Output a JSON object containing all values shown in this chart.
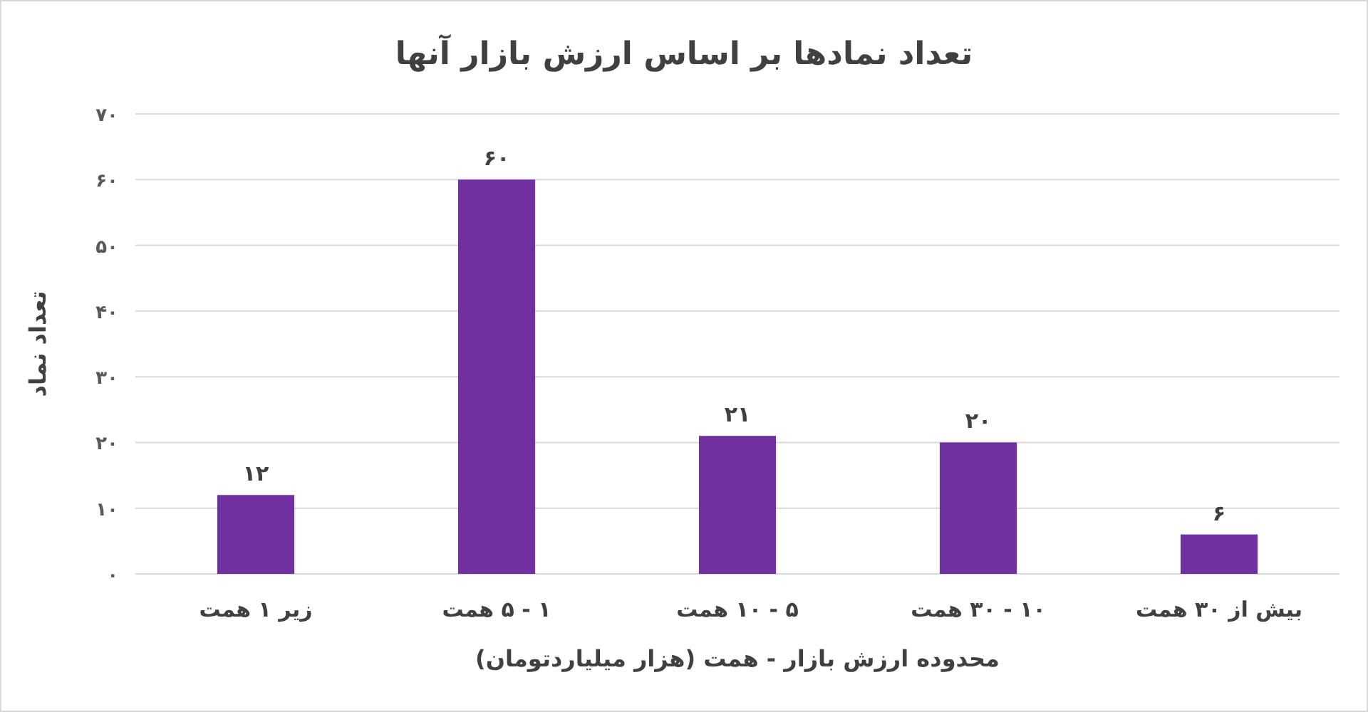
{
  "chart_data": {
    "type": "bar",
    "title": "تعداد نمادها بر اساس ارزش بازار آنها",
    "xlabel": "محدوده ارزش بازار - همت (هزار میلیاردتومان)",
    "ylabel": "تعداد نماد",
    "categories": [
      "زیر ۱ همت",
      "۱ - ۵ همت",
      "۵ - ۱۰ همت",
      "۱۰ - ۳۰ همت",
      "بیش از ۳۰ همت"
    ],
    "values": [
      12,
      60,
      21,
      20,
      6
    ],
    "value_labels": [
      "۱۲",
      "۶۰",
      "۲۱",
      "۲۰",
      "۶"
    ],
    "color": "#7030a0",
    "ylim": [
      0,
      70
    ],
    "yticks": [
      {
        "value": 0,
        "label": "۰"
      },
      {
        "value": 10,
        "label": "۱۰"
      },
      {
        "value": 20,
        "label": "۲۰"
      },
      {
        "value": 30,
        "label": "۳۰"
      },
      {
        "value": 40,
        "label": "۴۰"
      },
      {
        "value": 50,
        "label": "۵۰"
      },
      {
        "value": 60,
        "label": "۶۰"
      },
      {
        "value": 70,
        "label": "۷۰"
      }
    ],
    "grid": "y"
  }
}
